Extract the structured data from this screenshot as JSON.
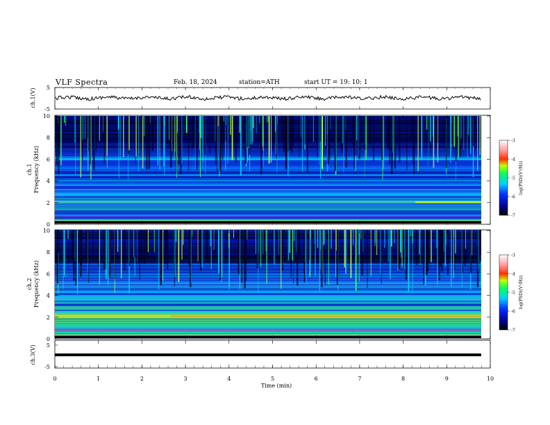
{
  "header": {
    "title": "VLF  Spectra",
    "date": "Feb. 18, 2024",
    "station": "station=ATH",
    "start_ut": "start  UT  =    19: 10: 1"
  },
  "chart_data": [
    {
      "type": "line",
      "panel": "ch1-waveform",
      "ylabel": "ch.1(V)",
      "xlim": [
        0,
        10
      ],
      "ylim": [
        -5,
        5
      ],
      "yticks": [
        "5",
        "-5"
      ],
      "description_series": "noisy trace near 0 V"
    },
    {
      "type": "heatmap",
      "panel": "ch1-spectrogram",
      "ylabel": "ch.1\nFrequency (kHz)",
      "xlim": [
        0,
        9.8
      ],
      "ylim": [
        0,
        10
      ],
      "yticks": [
        "0",
        "2",
        "4",
        "6",
        "8",
        "10"
      ],
      "colorbar": {
        "label": "log(PSD)(V²/Hz)",
        "range": [
          -7,
          -3
        ],
        "ticks": [
          "-3",
          "-4",
          "-5",
          "-6",
          "-7"
        ]
      }
    },
    {
      "type": "heatmap",
      "panel": "ch2-spectrogram",
      "ylabel": "ch.2\nFrequency (kHz)",
      "xlim": [
        0,
        9.8
      ],
      "ylim": [
        0,
        10
      ],
      "yticks": [
        "0",
        "2",
        "4",
        "6",
        "8",
        "10"
      ],
      "colorbar": {
        "label": "log(PSD)(V²/Hz)",
        "range": [
          -7,
          -3
        ],
        "ticks": [
          "-3",
          "-4",
          "-5",
          "-6",
          "-7"
        ]
      }
    },
    {
      "type": "line",
      "panel": "ch3-waveform",
      "ylabel": "ch.3(V)",
      "xlim": [
        0,
        10
      ],
      "ylim": [
        -5,
        5
      ],
      "yticks": [
        "5",
        "-5"
      ]
    }
  ],
  "axes": {
    "xlabel": "Time  (min)",
    "xticks": [
      "0",
      "1",
      "2",
      "3",
      "4",
      "5",
      "6",
      "7",
      "8",
      "9",
      "10"
    ]
  }
}
